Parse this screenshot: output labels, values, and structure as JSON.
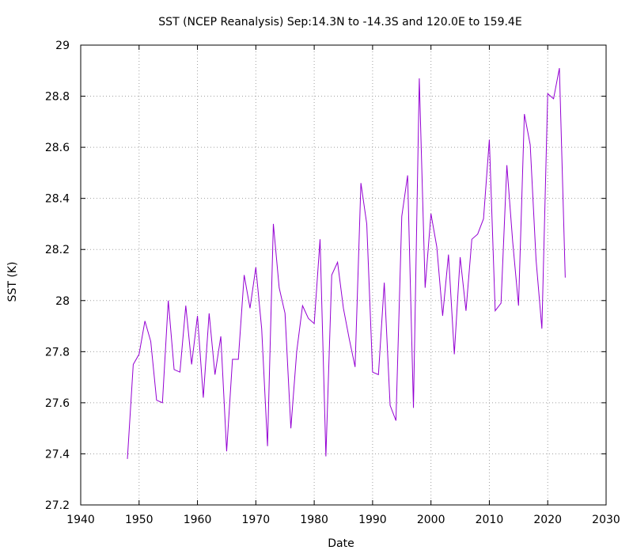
{
  "chart_data": {
    "type": "line",
    "title": "SST (NCEP Reanalysis) Sep:14.3N to -14.3S and 120.0E to 159.4E",
    "xlabel": "Date",
    "ylabel": "SST (K)",
    "xlim": [
      1940,
      2030
    ],
    "ylim": [
      27.2,
      29
    ],
    "xticks": [
      1940,
      1950,
      1960,
      1970,
      1980,
      1990,
      2000,
      2010,
      2020,
      2030
    ],
    "yticks": [
      27.2,
      27.4,
      27.6,
      27.8,
      28,
      28.2,
      28.4,
      28.6,
      28.8,
      29
    ],
    "ytick_labels": [
      "27.2",
      "27.4",
      "27.6",
      "27.8",
      "28",
      "28.2",
      "28.4",
      "28.6",
      "28.8",
      "29"
    ],
    "grid": true,
    "line_color": "#9400d3",
    "series": [
      {
        "x": [
          1948,
          1949,
          1950,
          1951,
          1952,
          1953,
          1954,
          1955,
          1956,
          1957,
          1958,
          1959,
          1960,
          1961,
          1962,
          1963,
          1964,
          1965,
          1966,
          1967,
          1968,
          1969,
          1970,
          1971,
          1972,
          1973,
          1974,
          1975,
          1976,
          1977,
          1978,
          1979,
          1980,
          1981,
          1982,
          1983,
          1984,
          1985,
          1986,
          1987,
          1988,
          1989,
          1990,
          1991,
          1992,
          1993,
          1994,
          1995,
          1996,
          1997,
          1998,
          1999,
          2000,
          2001,
          2002,
          2003,
          2004,
          2005,
          2006,
          2007,
          2008,
          2009,
          2010,
          2011,
          2012,
          2013,
          2014,
          2015,
          2016,
          2017,
          2018,
          2019,
          2020,
          2021,
          2022,
          2023
        ],
        "y": [
          27.38,
          27.75,
          27.79,
          27.92,
          27.84,
          27.61,
          27.6,
          28.0,
          27.73,
          27.72,
          27.98,
          27.75,
          27.94,
          27.62,
          27.95,
          27.71,
          27.86,
          27.41,
          27.77,
          27.77,
          28.1,
          27.97,
          28.13,
          27.89,
          27.43,
          28.3,
          28.05,
          27.95,
          27.5,
          27.8,
          27.98,
          27.93,
          27.91,
          28.24,
          27.39,
          28.1,
          28.15,
          27.97,
          27.85,
          27.74,
          28.46,
          28.3,
          27.72,
          27.71,
          28.07,
          27.59,
          27.53,
          28.33,
          28.49,
          27.58,
          28.87,
          28.05,
          28.34,
          28.21,
          27.94,
          28.18,
          27.79,
          28.17,
          27.96,
          28.24,
          28.26,
          28.32,
          28.63,
          27.96,
          27.99,
          28.53,
          28.23,
          27.98,
          28.73,
          28.61,
          28.16,
          27.89,
          28.81,
          28.79,
          28.91,
          28.09
        ]
      }
    ]
  }
}
